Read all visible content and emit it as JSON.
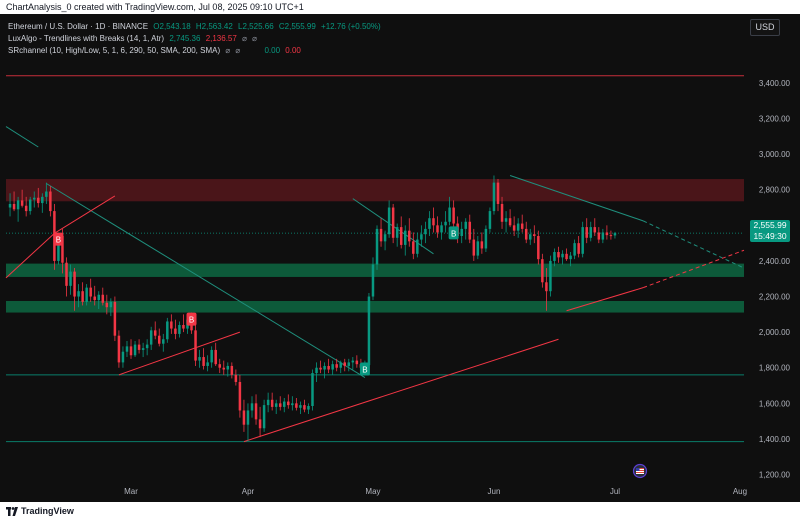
{
  "header": {
    "caption": "ChartAnalysis_0 created with TradingView.com, Jul 08, 2025 09:10 UTC+1"
  },
  "legend": {
    "symbol": "Ethereum / U.S. Dollar · 1D · BINANCE",
    "open": "O2,543.18",
    "high": "H2,563.42",
    "low": "L2,525.66",
    "close": "C2,555.99",
    "change": "+12.76 (+0.50%)",
    "luxalgo_label": "LuxAlgo - Trendlines with Breaks (14, 1, Atr)",
    "luxalgo_v1": "2,745.36",
    "luxalgo_v2": "2,136.57",
    "srchannel_label": "SRchannel (10, High/Low, 5, 1, 6, 290, 50, SMA, 200, SMA)",
    "sr_v1": "0.00",
    "sr_v2": "0.00"
  },
  "currency_button": "USD",
  "price_tag": {
    "price": "2,555.99",
    "countdown": "15:49:30"
  },
  "footer": {
    "brand": "TradingView"
  },
  "colors": {
    "up": "#089981",
    "down": "#f23645",
    "background": "#0f0f0f",
    "resistance_zone": "#4a1519",
    "support_zone": "#0d5a3a"
  },
  "chart_data": {
    "type": "candlestick",
    "y_ticks": [
      "3,400.00",
      "3,200.00",
      "3,000.00",
      "2,800.00",
      "2,600.00",
      "2,400.00",
      "2,200.00",
      "2,000.00",
      "1,800.00",
      "1,600.00",
      "1,400.00",
      "1,200.00"
    ],
    "y_tick_values": [
      3400,
      3200,
      3000,
      2800,
      2600,
      2400,
      2200,
      2000,
      1800,
      1600,
      1400,
      1200
    ],
    "x_ticks": [
      "Mar",
      "Apr",
      "May",
      "Jun",
      "Jul",
      "Aug"
    ],
    "x_tick_days": [
      30,
      59,
      90,
      120,
      150,
      181
    ],
    "ylim": [
      1130,
      3540
    ],
    "day_range": [
      -1,
      182
    ],
    "start_date": "2025-01-30",
    "zones": [
      {
        "type": "resistance",
        "y": [
          2735,
          2860
        ]
      },
      {
        "type": "support",
        "y": [
          2310,
          2385
        ]
      },
      {
        "type": "support",
        "y": [
          2110,
          2175
        ]
      }
    ],
    "horizontal_levels": [
      {
        "y": 3440,
        "color": "#f23645"
      },
      {
        "y": 1760,
        "color": "#089981"
      },
      {
        "y": 1385,
        "color": "#089981"
      }
    ],
    "trendlines": [
      {
        "color": "#1f8f7d",
        "style": "solid",
        "points": [
          [
            9,
            2835
          ],
          [
            88,
            1745
          ]
        ]
      },
      {
        "color": "#1f8f7d",
        "style": "solid",
        "points": [
          [
            -1,
            3155
          ],
          [
            7,
            3040
          ]
        ]
      },
      {
        "color": "#1f8f7d",
        "style": "solid",
        "points": [
          [
            85,
            2750
          ],
          [
            105,
            2440
          ]
        ]
      },
      {
        "color": "#1f8f7d",
        "style": "solid",
        "points": [
          [
            124,
            2880
          ],
          [
            157,
            2625
          ]
        ]
      },
      {
        "color": "#1f8f7d",
        "style": "dashed",
        "points": [
          [
            157,
            2625
          ],
          [
            182,
            2360
          ]
        ]
      },
      {
        "color": "#f23645",
        "style": "solid",
        "points": [
          [
            -1,
            2305
          ],
          [
            11,
            2555
          ]
        ]
      },
      {
        "color": "#f23645",
        "style": "solid",
        "points": [
          [
            11,
            2555
          ],
          [
            26,
            2765
          ]
        ]
      },
      {
        "color": "#f23645",
        "style": "solid",
        "points": [
          [
            27,
            1760
          ],
          [
            57,
            2000
          ]
        ]
      },
      {
        "color": "#f23645",
        "style": "solid",
        "points": [
          [
            58,
            1385
          ],
          [
            136,
            1960
          ]
        ]
      },
      {
        "color": "#f23645",
        "style": "solid",
        "points": [
          [
            138,
            2120
          ],
          [
            157,
            2250
          ]
        ]
      },
      {
        "color": "#f23645",
        "style": "dashed",
        "points": [
          [
            157,
            2250
          ],
          [
            182,
            2460
          ]
        ]
      }
    ],
    "break_labels": [
      {
        "text": "B",
        "kind": "bearish",
        "day": 12,
        "y": 2520
      },
      {
        "text": "B",
        "kind": "bearish",
        "day": 45,
        "y": 2070
      },
      {
        "text": "B",
        "kind": "bullish",
        "day": 88,
        "y": 1790
      },
      {
        "text": "B",
        "kind": "bullish",
        "day": 110,
        "y": 2555
      }
    ],
    "last_price": 2555.99,
    "candles": [
      {
        "o": 2700,
        "h": 2780,
        "l": 2650,
        "c": 2720
      },
      {
        "o": 2720,
        "h": 2790,
        "l": 2680,
        "c": 2690
      },
      {
        "o": 2690,
        "h": 2760,
        "l": 2620,
        "c": 2740
      },
      {
        "o": 2740,
        "h": 2800,
        "l": 2700,
        "c": 2710
      },
      {
        "o": 2710,
        "h": 2760,
        "l": 2650,
        "c": 2680
      },
      {
        "o": 2680,
        "h": 2760,
        "l": 2660,
        "c": 2745
      },
      {
        "o": 2745,
        "h": 2790,
        "l": 2700,
        "c": 2755
      },
      {
        "o": 2755,
        "h": 2810,
        "l": 2700,
        "c": 2725
      },
      {
        "o": 2725,
        "h": 2780,
        "l": 2670,
        "c": 2760
      },
      {
        "o": 2760,
        "h": 2840,
        "l": 2720,
        "c": 2790
      },
      {
        "o": 2790,
        "h": 2820,
        "l": 2650,
        "c": 2680
      },
      {
        "o": 2680,
        "h": 2720,
        "l": 2350,
        "c": 2400
      },
      {
        "o": 2400,
        "h": 2560,
        "l": 2380,
        "c": 2540
      },
      {
        "o": 2540,
        "h": 2580,
        "l": 2330,
        "c": 2390
      },
      {
        "o": 2390,
        "h": 2420,
        "l": 2200,
        "c": 2260
      },
      {
        "o": 2260,
        "h": 2380,
        "l": 2210,
        "c": 2340
      },
      {
        "o": 2340,
        "h": 2360,
        "l": 2120,
        "c": 2200
      },
      {
        "o": 2200,
        "h": 2270,
        "l": 2140,
        "c": 2230
      },
      {
        "o": 2230,
        "h": 2280,
        "l": 2150,
        "c": 2170
      },
      {
        "o": 2170,
        "h": 2270,
        "l": 2150,
        "c": 2250
      },
      {
        "o": 2250,
        "h": 2300,
        "l": 2170,
        "c": 2200
      },
      {
        "o": 2200,
        "h": 2260,
        "l": 2150,
        "c": 2180
      },
      {
        "o": 2180,
        "h": 2230,
        "l": 2130,
        "c": 2210
      },
      {
        "o": 2210,
        "h": 2250,
        "l": 2150,
        "c": 2165
      },
      {
        "o": 2165,
        "h": 2210,
        "l": 2100,
        "c": 2140
      },
      {
        "o": 2140,
        "h": 2190,
        "l": 2090,
        "c": 2170
      },
      {
        "o": 2170,
        "h": 2200,
        "l": 1950,
        "c": 1980
      },
      {
        "o": 1980,
        "h": 2010,
        "l": 1800,
        "c": 1830
      },
      {
        "o": 1830,
        "h": 1920,
        "l": 1800,
        "c": 1890
      },
      {
        "o": 1890,
        "h": 1950,
        "l": 1860,
        "c": 1920
      },
      {
        "o": 1920,
        "h": 1960,
        "l": 1850,
        "c": 1870
      },
      {
        "o": 1870,
        "h": 1950,
        "l": 1860,
        "c": 1930
      },
      {
        "o": 1930,
        "h": 1960,
        "l": 1880,
        "c": 1900
      },
      {
        "o": 1900,
        "h": 1940,
        "l": 1860,
        "c": 1910
      },
      {
        "o": 1910,
        "h": 1960,
        "l": 1870,
        "c": 1930
      },
      {
        "o": 1930,
        "h": 2030,
        "l": 1900,
        "c": 2010
      },
      {
        "o": 2010,
        "h": 2060,
        "l": 1960,
        "c": 1980
      },
      {
        "o": 1980,
        "h": 2020,
        "l": 1920,
        "c": 1935
      },
      {
        "o": 1935,
        "h": 1990,
        "l": 1890,
        "c": 1960
      },
      {
        "o": 1960,
        "h": 2080,
        "l": 1940,
        "c": 2060
      },
      {
        "o": 2060,
        "h": 2100,
        "l": 1990,
        "c": 2020
      },
      {
        "o": 2020,
        "h": 2070,
        "l": 1960,
        "c": 1990
      },
      {
        "o": 1990,
        "h": 2060,
        "l": 1970,
        "c": 2040
      },
      {
        "o": 2040,
        "h": 2100,
        "l": 2000,
        "c": 2020
      },
      {
        "o": 2020,
        "h": 2090,
        "l": 1990,
        "c": 2070
      },
      {
        "o": 2070,
        "h": 2110,
        "l": 1990,
        "c": 2010
      },
      {
        "o": 2010,
        "h": 2050,
        "l": 1810,
        "c": 1840
      },
      {
        "o": 1840,
        "h": 1900,
        "l": 1800,
        "c": 1860
      },
      {
        "o": 1860,
        "h": 1910,
        "l": 1790,
        "c": 1810
      },
      {
        "o": 1810,
        "h": 1870,
        "l": 1780,
        "c": 1830
      },
      {
        "o": 1830,
        "h": 1920,
        "l": 1800,
        "c": 1900
      },
      {
        "o": 1900,
        "h": 1940,
        "l": 1810,
        "c": 1820
      },
      {
        "o": 1820,
        "h": 1850,
        "l": 1770,
        "c": 1800
      },
      {
        "o": 1800,
        "h": 1840,
        "l": 1760,
        "c": 1790
      },
      {
        "o": 1790,
        "h": 1830,
        "l": 1750,
        "c": 1810
      },
      {
        "o": 1810,
        "h": 1830,
        "l": 1740,
        "c": 1760
      },
      {
        "o": 1760,
        "h": 1790,
        "l": 1700,
        "c": 1720
      },
      {
        "o": 1720,
        "h": 1760,
        "l": 1520,
        "c": 1560
      },
      {
        "o": 1560,
        "h": 1620,
        "l": 1440,
        "c": 1480
      },
      {
        "o": 1480,
        "h": 1600,
        "l": 1390,
        "c": 1560
      },
      {
        "o": 1560,
        "h": 1640,
        "l": 1520,
        "c": 1600
      },
      {
        "o": 1600,
        "h": 1650,
        "l": 1480,
        "c": 1510
      },
      {
        "o": 1510,
        "h": 1580,
        "l": 1410,
        "c": 1460
      },
      {
        "o": 1460,
        "h": 1620,
        "l": 1440,
        "c": 1590
      },
      {
        "o": 1590,
        "h": 1660,
        "l": 1550,
        "c": 1620
      },
      {
        "o": 1620,
        "h": 1660,
        "l": 1560,
        "c": 1580
      },
      {
        "o": 1580,
        "h": 1620,
        "l": 1540,
        "c": 1600
      },
      {
        "o": 1600,
        "h": 1640,
        "l": 1560,
        "c": 1580
      },
      {
        "o": 1580,
        "h": 1630,
        "l": 1550,
        "c": 1610
      },
      {
        "o": 1610,
        "h": 1650,
        "l": 1570,
        "c": 1590
      },
      {
        "o": 1590,
        "h": 1640,
        "l": 1560,
        "c": 1600
      },
      {
        "o": 1600,
        "h": 1630,
        "l": 1560,
        "c": 1575
      },
      {
        "o": 1575,
        "h": 1610,
        "l": 1540,
        "c": 1590
      },
      {
        "o": 1590,
        "h": 1620,
        "l": 1550,
        "c": 1565
      },
      {
        "o": 1565,
        "h": 1600,
        "l": 1540,
        "c": 1585
      },
      {
        "o": 1585,
        "h": 1790,
        "l": 1560,
        "c": 1770
      },
      {
        "o": 1770,
        "h": 1830,
        "l": 1720,
        "c": 1800
      },
      {
        "o": 1800,
        "h": 1840,
        "l": 1770,
        "c": 1790
      },
      {
        "o": 1790,
        "h": 1830,
        "l": 1740,
        "c": 1810
      },
      {
        "o": 1810,
        "h": 1850,
        "l": 1770,
        "c": 1790
      },
      {
        "o": 1790,
        "h": 1840,
        "l": 1760,
        "c": 1820
      },
      {
        "o": 1820,
        "h": 1850,
        "l": 1780,
        "c": 1800
      },
      {
        "o": 1800,
        "h": 1840,
        "l": 1770,
        "c": 1830
      },
      {
        "o": 1830,
        "h": 1850,
        "l": 1780,
        "c": 1810
      },
      {
        "o": 1810,
        "h": 1850,
        "l": 1780,
        "c": 1830
      },
      {
        "o": 1830,
        "h": 1860,
        "l": 1790,
        "c": 1840
      },
      {
        "o": 1840,
        "h": 1870,
        "l": 1800,
        "c": 1820
      },
      {
        "o": 1820,
        "h": 1850,
        "l": 1770,
        "c": 1800
      },
      {
        "o": 1800,
        "h": 1840,
        "l": 1770,
        "c": 1815
      },
      {
        "o": 1815,
        "h": 2220,
        "l": 1800,
        "c": 2200
      },
      {
        "o": 2200,
        "h": 2420,
        "l": 2180,
        "c": 2380
      },
      {
        "o": 2380,
        "h": 2600,
        "l": 2350,
        "c": 2580
      },
      {
        "o": 2580,
        "h": 2640,
        "l": 2480,
        "c": 2510
      },
      {
        "o": 2510,
        "h": 2570,
        "l": 2460,
        "c": 2550
      },
      {
        "o": 2550,
        "h": 2740,
        "l": 2530,
        "c": 2700
      },
      {
        "o": 2700,
        "h": 2720,
        "l": 2500,
        "c": 2530
      },
      {
        "o": 2530,
        "h": 2610,
        "l": 2480,
        "c": 2590
      },
      {
        "o": 2590,
        "h": 2650,
        "l": 2470,
        "c": 2490
      },
      {
        "o": 2490,
        "h": 2600,
        "l": 2430,
        "c": 2570
      },
      {
        "o": 2570,
        "h": 2640,
        "l": 2480,
        "c": 2510
      },
      {
        "o": 2510,
        "h": 2560,
        "l": 2410,
        "c": 2440
      },
      {
        "o": 2440,
        "h": 2560,
        "l": 2420,
        "c": 2520
      },
      {
        "o": 2520,
        "h": 2600,
        "l": 2480,
        "c": 2550
      },
      {
        "o": 2550,
        "h": 2620,
        "l": 2500,
        "c": 2580
      },
      {
        "o": 2580,
        "h": 2680,
        "l": 2540,
        "c": 2640
      },
      {
        "o": 2640,
        "h": 2700,
        "l": 2560,
        "c": 2600
      },
      {
        "o": 2600,
        "h": 2650,
        "l": 2530,
        "c": 2560
      },
      {
        "o": 2560,
        "h": 2620,
        "l": 2520,
        "c": 2600
      },
      {
        "o": 2600,
        "h": 2680,
        "l": 2560,
        "c": 2620
      },
      {
        "o": 2620,
        "h": 2760,
        "l": 2600,
        "c": 2700
      },
      {
        "o": 2700,
        "h": 2740,
        "l": 2580,
        "c": 2610
      },
      {
        "o": 2610,
        "h": 2650,
        "l": 2500,
        "c": 2540
      },
      {
        "o": 2540,
        "h": 2620,
        "l": 2500,
        "c": 2580
      },
      {
        "o": 2580,
        "h": 2640,
        "l": 2520,
        "c": 2620
      },
      {
        "o": 2620,
        "h": 2660,
        "l": 2500,
        "c": 2520
      },
      {
        "o": 2520,
        "h": 2580,
        "l": 2400,
        "c": 2430
      },
      {
        "o": 2430,
        "h": 2540,
        "l": 2410,
        "c": 2510
      },
      {
        "o": 2510,
        "h": 2560,
        "l": 2440,
        "c": 2470
      },
      {
        "o": 2470,
        "h": 2600,
        "l": 2450,
        "c": 2580
      },
      {
        "o": 2580,
        "h": 2700,
        "l": 2560,
        "c": 2680
      },
      {
        "o": 2680,
        "h": 2880,
        "l": 2660,
        "c": 2840
      },
      {
        "o": 2840,
        "h": 2860,
        "l": 2680,
        "c": 2720
      },
      {
        "o": 2720,
        "h": 2760,
        "l": 2580,
        "c": 2620
      },
      {
        "o": 2620,
        "h": 2680,
        "l": 2560,
        "c": 2640
      },
      {
        "o": 2640,
        "h": 2690,
        "l": 2590,
        "c": 2600
      },
      {
        "o": 2600,
        "h": 2650,
        "l": 2540,
        "c": 2570
      },
      {
        "o": 2570,
        "h": 2640,
        "l": 2530,
        "c": 2610
      },
      {
        "o": 2610,
        "h": 2660,
        "l": 2560,
        "c": 2580
      },
      {
        "o": 2580,
        "h": 2620,
        "l": 2500,
        "c": 2520
      },
      {
        "o": 2520,
        "h": 2580,
        "l": 2490,
        "c": 2550
      },
      {
        "o": 2550,
        "h": 2600,
        "l": 2500,
        "c": 2540
      },
      {
        "o": 2540,
        "h": 2570,
        "l": 2380,
        "c": 2410
      },
      {
        "o": 2410,
        "h": 2440,
        "l": 2250,
        "c": 2280
      },
      {
        "o": 2280,
        "h": 2360,
        "l": 2120,
        "c": 2230
      },
      {
        "o": 2230,
        "h": 2430,
        "l": 2200,
        "c": 2400
      },
      {
        "o": 2400,
        "h": 2470,
        "l": 2370,
        "c": 2450
      },
      {
        "o": 2450,
        "h": 2480,
        "l": 2390,
        "c": 2420
      },
      {
        "o": 2420,
        "h": 2460,
        "l": 2380,
        "c": 2440
      },
      {
        "o": 2440,
        "h": 2470,
        "l": 2400,
        "c": 2410
      },
      {
        "o": 2410,
        "h": 2450,
        "l": 2370,
        "c": 2430
      },
      {
        "o": 2430,
        "h": 2520,
        "l": 2410,
        "c": 2500
      },
      {
        "o": 2500,
        "h": 2540,
        "l": 2420,
        "c": 2440
      },
      {
        "o": 2440,
        "h": 2620,
        "l": 2420,
        "c": 2590
      },
      {
        "o": 2590,
        "h": 2640,
        "l": 2500,
        "c": 2530
      },
      {
        "o": 2530,
        "h": 2620,
        "l": 2510,
        "c": 2590
      },
      {
        "o": 2590,
        "h": 2640,
        "l": 2540,
        "c": 2560
      },
      {
        "o": 2560,
        "h": 2590,
        "l": 2500,
        "c": 2520
      },
      {
        "o": 2520,
        "h": 2580,
        "l": 2500,
        "c": 2560
      },
      {
        "o": 2560,
        "h": 2600,
        "l": 2520,
        "c": 2545
      },
      {
        "o": 2545,
        "h": 2570,
        "l": 2520,
        "c": 2543
      },
      {
        "o": 2543.18,
        "h": 2563.42,
        "l": 2525.66,
        "c": 2555.99
      }
    ]
  }
}
